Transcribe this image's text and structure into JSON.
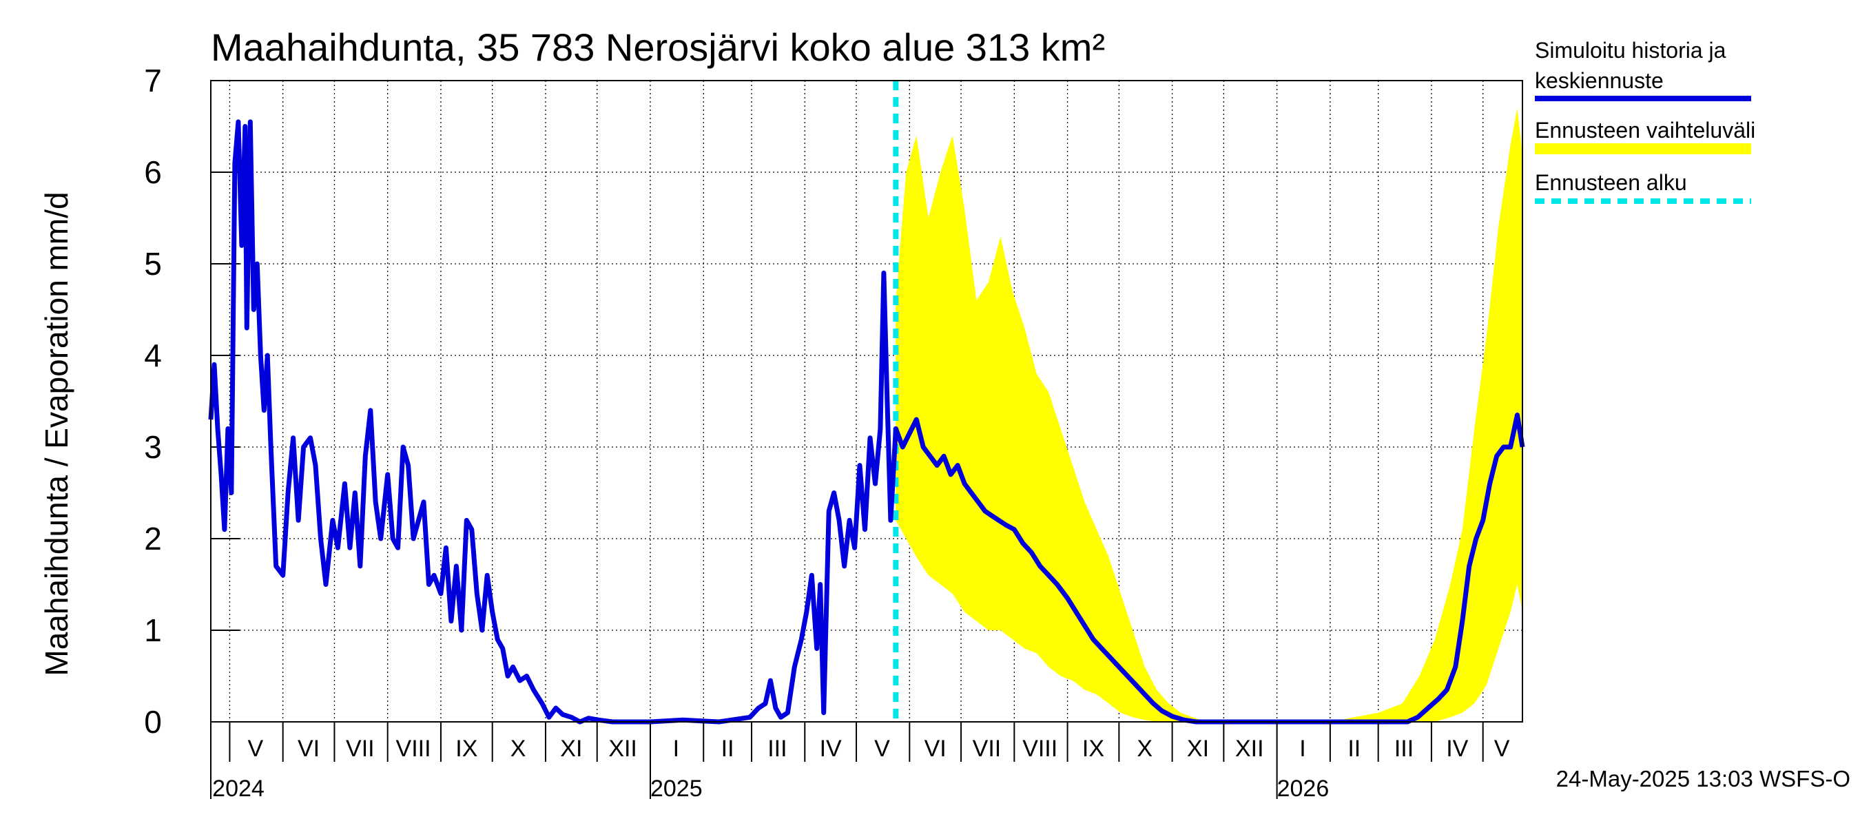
{
  "chart_data": {
    "type": "line",
    "title": "Maahaihdunta, 35 783 Nerosjärvi koko alue 313 km²",
    "ylabel": "Maahaihdunta / Evaporation   mm/d",
    "ylim": [
      0,
      7
    ],
    "yticks": [
      "0",
      "1",
      "2",
      "3",
      "4",
      "5",
      "6",
      "7"
    ],
    "grid": true,
    "xlim": [
      "2024-04-20",
      "2026-05-24"
    ],
    "month_ticks": [
      "2024-05-01",
      "2024-06-01",
      "2024-07-01",
      "2024-08-01",
      "2024-09-01",
      "2024-10-01",
      "2024-11-01",
      "2024-12-01",
      "2025-01-01",
      "2025-02-01",
      "2025-03-01",
      "2025-04-01",
      "2025-05-01",
      "2025-06-01",
      "2025-07-01",
      "2025-08-01",
      "2025-09-01",
      "2025-10-01",
      "2025-11-01",
      "2025-12-01",
      "2026-01-01",
      "2026-02-01",
      "2026-03-01",
      "2026-04-01",
      "2026-05-01"
    ],
    "month_labels": [
      {
        "label": "V",
        "date": "2024-05-16"
      },
      {
        "label": "VI",
        "date": "2024-06-16"
      },
      {
        "label": "VII",
        "date": "2024-07-16"
      },
      {
        "label": "VIII",
        "date": "2024-08-16"
      },
      {
        "label": "IX",
        "date": "2024-09-16"
      },
      {
        "label": "X",
        "date": "2024-10-16"
      },
      {
        "label": "XI",
        "date": "2024-11-16"
      },
      {
        "label": "XII",
        "date": "2024-12-16"
      },
      {
        "label": "I",
        "date": "2025-01-16"
      },
      {
        "label": "II",
        "date": "2025-02-15"
      },
      {
        "label": "III",
        "date": "2025-03-16"
      },
      {
        "label": "IV",
        "date": "2025-04-16"
      },
      {
        "label": "V",
        "date": "2025-05-16"
      },
      {
        "label": "VI",
        "date": "2025-06-16"
      },
      {
        "label": "VII",
        "date": "2025-07-16"
      },
      {
        "label": "VIII",
        "date": "2025-08-16"
      },
      {
        "label": "IX",
        "date": "2025-09-16"
      },
      {
        "label": "X",
        "date": "2025-10-16"
      },
      {
        "label": "XI",
        "date": "2025-11-16"
      },
      {
        "label": "XII",
        "date": "2025-12-16"
      },
      {
        "label": "I",
        "date": "2026-01-16"
      },
      {
        "label": "II",
        "date": "2026-02-15"
      },
      {
        "label": "III",
        "date": "2026-03-16"
      },
      {
        "label": "IV",
        "date": "2026-04-16"
      },
      {
        "label": "V",
        "date": "2026-05-12"
      }
    ],
    "year_labels": [
      {
        "label": "2024",
        "date": "2024-05-01"
      },
      {
        "label": "2025",
        "date": "2025-01-01"
      },
      {
        "label": "2026",
        "date": "2026-01-01"
      }
    ],
    "forecast_start": "2025-05-24",
    "series": [
      {
        "name": "Simuloitu historia ja keskiennuste",
        "color": "#0000dd",
        "points": [
          [
            "2024-04-20",
            3.3
          ],
          [
            "2024-04-22",
            3.9
          ],
          [
            "2024-04-24",
            3.2
          ],
          [
            "2024-04-26",
            2.7
          ],
          [
            "2024-04-28",
            2.1
          ],
          [
            "2024-04-30",
            3.2
          ],
          [
            "2024-05-02",
            2.5
          ],
          [
            "2024-05-04",
            6.1
          ],
          [
            "2024-05-06",
            6.55
          ],
          [
            "2024-05-08",
            5.2
          ],
          [
            "2024-05-10",
            6.5
          ],
          [
            "2024-05-11",
            4.3
          ],
          [
            "2024-05-13",
            6.55
          ],
          [
            "2024-05-15",
            4.5
          ],
          [
            "2024-05-17",
            5.0
          ],
          [
            "2024-05-19",
            4.0
          ],
          [
            "2024-05-21",
            3.4
          ],
          [
            "2024-05-23",
            4.0
          ],
          [
            "2024-05-25",
            3.0
          ],
          [
            "2024-05-28",
            1.7
          ],
          [
            "2024-06-01",
            1.6
          ],
          [
            "2024-06-04",
            2.5
          ],
          [
            "2024-06-07",
            3.1
          ],
          [
            "2024-06-10",
            2.2
          ],
          [
            "2024-06-13",
            3.0
          ],
          [
            "2024-06-17",
            3.1
          ],
          [
            "2024-06-20",
            2.8
          ],
          [
            "2024-06-23",
            2.0
          ],
          [
            "2024-06-26",
            1.5
          ],
          [
            "2024-06-30",
            2.2
          ],
          [
            "2024-07-03",
            1.9
          ],
          [
            "2024-07-07",
            2.6
          ],
          [
            "2024-07-10",
            1.9
          ],
          [
            "2024-07-13",
            2.5
          ],
          [
            "2024-07-16",
            1.7
          ],
          [
            "2024-07-19",
            2.9
          ],
          [
            "2024-07-22",
            3.4
          ],
          [
            "2024-07-25",
            2.4
          ],
          [
            "2024-07-28",
            2.0
          ],
          [
            "2024-08-01",
            2.7
          ],
          [
            "2024-08-04",
            2.0
          ],
          [
            "2024-08-07",
            1.9
          ],
          [
            "2024-08-10",
            3.0
          ],
          [
            "2024-08-13",
            2.8
          ],
          [
            "2024-08-16",
            2.0
          ],
          [
            "2024-08-19",
            2.2
          ],
          [
            "2024-08-22",
            2.4
          ],
          [
            "2024-08-25",
            1.5
          ],
          [
            "2024-08-28",
            1.6
          ],
          [
            "2024-09-01",
            1.4
          ],
          [
            "2024-09-04",
            1.9
          ],
          [
            "2024-09-07",
            1.1
          ],
          [
            "2024-09-10",
            1.7
          ],
          [
            "2024-09-13",
            1.0
          ],
          [
            "2024-09-16",
            2.2
          ],
          [
            "2024-09-19",
            2.1
          ],
          [
            "2024-09-22",
            1.4
          ],
          [
            "2024-09-25",
            1.0
          ],
          [
            "2024-09-28",
            1.6
          ],
          [
            "2024-10-01",
            1.2
          ],
          [
            "2024-10-04",
            0.9
          ],
          [
            "2024-10-07",
            0.8
          ],
          [
            "2024-10-10",
            0.5
          ],
          [
            "2024-10-13",
            0.6
          ],
          [
            "2024-10-17",
            0.45
          ],
          [
            "2024-10-21",
            0.5
          ],
          [
            "2024-10-25",
            0.35
          ],
          [
            "2024-10-30",
            0.2
          ],
          [
            "2024-11-03",
            0.05
          ],
          [
            "2024-11-07",
            0.15
          ],
          [
            "2024-11-11",
            0.08
          ],
          [
            "2024-11-16",
            0.05
          ],
          [
            "2024-11-21",
            0.0
          ],
          [
            "2024-11-26",
            0.04
          ],
          [
            "2024-12-02",
            0.02
          ],
          [
            "2024-12-10",
            0.0
          ],
          [
            "2025-01-01",
            0.0
          ],
          [
            "2025-01-20",
            0.02
          ],
          [
            "2025-02-10",
            0.0
          ],
          [
            "2025-02-28",
            0.05
          ],
          [
            "2025-03-05",
            0.15
          ],
          [
            "2025-03-09",
            0.2
          ],
          [
            "2025-03-12",
            0.45
          ],
          [
            "2025-03-15",
            0.15
          ],
          [
            "2025-03-18",
            0.05
          ],
          [
            "2025-03-22",
            0.1
          ],
          [
            "2025-03-26",
            0.6
          ],
          [
            "2025-03-30",
            0.9
          ],
          [
            "2025-04-02",
            1.2
          ],
          [
            "2025-04-05",
            1.6
          ],
          [
            "2025-04-08",
            0.8
          ],
          [
            "2025-04-10",
            1.5
          ],
          [
            "2025-04-12",
            0.1
          ],
          [
            "2025-04-15",
            2.3
          ],
          [
            "2025-04-18",
            2.5
          ],
          [
            "2025-04-21",
            2.2
          ],
          [
            "2025-04-24",
            1.7
          ],
          [
            "2025-04-27",
            2.2
          ],
          [
            "2025-04-30",
            1.9
          ],
          [
            "2025-05-03",
            2.8
          ],
          [
            "2025-05-06",
            2.1
          ],
          [
            "2025-05-09",
            3.1
          ],
          [
            "2025-05-12",
            2.6
          ],
          [
            "2025-05-15",
            3.2
          ],
          [
            "2025-05-17",
            4.9
          ],
          [
            "2025-05-19",
            3.5
          ],
          [
            "2025-05-21",
            2.2
          ],
          [
            "2025-05-24",
            3.2
          ],
          [
            "2025-05-28",
            3.0
          ],
          [
            "2025-06-01",
            3.15
          ],
          [
            "2025-06-05",
            3.3
          ],
          [
            "2025-06-09",
            3.0
          ],
          [
            "2025-06-13",
            2.9
          ],
          [
            "2025-06-17",
            2.8
          ],
          [
            "2025-06-21",
            2.9
          ],
          [
            "2025-06-25",
            2.7
          ],
          [
            "2025-06-29",
            2.8
          ],
          [
            "2025-07-03",
            2.6
          ],
          [
            "2025-07-07",
            2.5
          ],
          [
            "2025-07-11",
            2.4
          ],
          [
            "2025-07-15",
            2.3
          ],
          [
            "2025-07-19",
            2.25
          ],
          [
            "2025-07-23",
            2.2
          ],
          [
            "2025-07-27",
            2.15
          ],
          [
            "2025-08-01",
            2.1
          ],
          [
            "2025-08-06",
            1.95
          ],
          [
            "2025-08-11",
            1.85
          ],
          [
            "2025-08-16",
            1.7
          ],
          [
            "2025-08-21",
            1.6
          ],
          [
            "2025-08-26",
            1.5
          ],
          [
            "2025-09-01",
            1.35
          ],
          [
            "2025-09-06",
            1.2
          ],
          [
            "2025-09-11",
            1.05
          ],
          [
            "2025-09-16",
            0.9
          ],
          [
            "2025-09-21",
            0.8
          ],
          [
            "2025-09-26",
            0.7
          ],
          [
            "2025-10-01",
            0.6
          ],
          [
            "2025-10-06",
            0.5
          ],
          [
            "2025-10-11",
            0.4
          ],
          [
            "2025-10-16",
            0.3
          ],
          [
            "2025-10-21",
            0.2
          ],
          [
            "2025-10-26",
            0.12
          ],
          [
            "2025-11-01",
            0.06
          ],
          [
            "2025-11-08",
            0.02
          ],
          [
            "2025-11-15",
            0.0
          ],
          [
            "2025-12-01",
            0.0
          ],
          [
            "2026-01-01",
            0.0
          ],
          [
            "2026-02-01",
            0.0
          ],
          [
            "2026-03-01",
            0.0
          ],
          [
            "2026-03-18",
            0.0
          ],
          [
            "2026-03-24",
            0.05
          ],
          [
            "2026-03-30",
            0.15
          ],
          [
            "2026-04-05",
            0.25
          ],
          [
            "2026-04-10",
            0.35
          ],
          [
            "2026-04-15",
            0.6
          ],
          [
            "2026-04-19",
            1.1
          ],
          [
            "2026-04-23",
            1.7
          ],
          [
            "2026-04-27",
            2.0
          ],
          [
            "2026-05-01",
            2.2
          ],
          [
            "2026-05-05",
            2.6
          ],
          [
            "2026-05-09",
            2.9
          ],
          [
            "2026-05-13",
            3.0
          ],
          [
            "2026-05-17",
            3.0
          ],
          [
            "2026-05-21",
            3.35
          ],
          [
            "2026-05-24",
            3.0
          ]
        ]
      },
      {
        "name": "Ennusteen vaihteluväli",
        "color": "#ffff00",
        "band": [
          [
            "2025-05-24",
            2.2,
            4.6
          ],
          [
            "2025-05-30",
            2.0,
            6.0
          ],
          [
            "2025-06-05",
            1.8,
            6.4
          ],
          [
            "2025-06-12",
            1.6,
            5.5
          ],
          [
            "2025-06-19",
            1.5,
            6.0
          ],
          [
            "2025-06-26",
            1.4,
            6.4
          ],
          [
            "2025-07-03",
            1.2,
            5.6
          ],
          [
            "2025-07-10",
            1.1,
            4.6
          ],
          [
            "2025-07-17",
            1.0,
            4.8
          ],
          [
            "2025-07-24",
            1.0,
            5.3
          ],
          [
            "2025-07-31",
            0.9,
            4.7
          ],
          [
            "2025-08-07",
            0.8,
            4.3
          ],
          [
            "2025-08-14",
            0.75,
            3.8
          ],
          [
            "2025-08-21",
            0.6,
            3.6
          ],
          [
            "2025-08-28",
            0.5,
            3.2
          ],
          [
            "2025-09-04",
            0.45,
            2.8
          ],
          [
            "2025-09-11",
            0.35,
            2.4
          ],
          [
            "2025-09-18",
            0.3,
            2.1
          ],
          [
            "2025-09-25",
            0.2,
            1.8
          ],
          [
            "2025-10-02",
            0.1,
            1.4
          ],
          [
            "2025-10-09",
            0.05,
            1.0
          ],
          [
            "2025-10-16",
            0.02,
            0.6
          ],
          [
            "2025-10-23",
            0.0,
            0.35
          ],
          [
            "2025-10-30",
            0.0,
            0.2
          ],
          [
            "2025-11-06",
            0.0,
            0.1
          ],
          [
            "2025-11-16",
            0.0,
            0.03
          ],
          [
            "2025-12-01",
            0.0,
            0.0
          ],
          [
            "2026-01-01",
            0.0,
            0.0
          ],
          [
            "2026-02-01",
            0.0,
            0.0
          ],
          [
            "2026-02-15",
            0.0,
            0.05
          ],
          [
            "2026-03-01",
            0.0,
            0.1
          ],
          [
            "2026-03-15",
            0.0,
            0.2
          ],
          [
            "2026-03-25",
            0.0,
            0.5
          ],
          [
            "2026-04-03",
            0.0,
            0.9
          ],
          [
            "2026-04-12",
            0.05,
            1.5
          ],
          [
            "2026-04-19",
            0.1,
            2.1
          ],
          [
            "2026-04-26",
            0.2,
            3.2
          ],
          [
            "2026-05-03",
            0.4,
            4.2
          ],
          [
            "2026-05-10",
            0.8,
            5.4
          ],
          [
            "2026-05-17",
            1.2,
            6.3
          ],
          [
            "2026-05-21",
            1.5,
            6.7
          ],
          [
            "2026-05-24",
            1.2,
            6.2
          ]
        ]
      },
      {
        "name": "Ennusteen alku",
        "color": "#00e6e6",
        "style": "dashed"
      }
    ],
    "legend": {
      "position": "right",
      "items": [
        {
          "lines": [
            "Simuloitu historia ja",
            "keskiennuste"
          ],
          "color": "#0000dd",
          "style": "solid"
        },
        {
          "lines": [
            "Ennusteen vaihteluväli"
          ],
          "color": "#ffff00",
          "style": "band"
        },
        {
          "lines": [
            "Ennusteen alku"
          ],
          "color": "#00e6e6",
          "style": "dashed"
        }
      ]
    },
    "timestamp": "24-May-2025 13:03 WSFS-O"
  }
}
